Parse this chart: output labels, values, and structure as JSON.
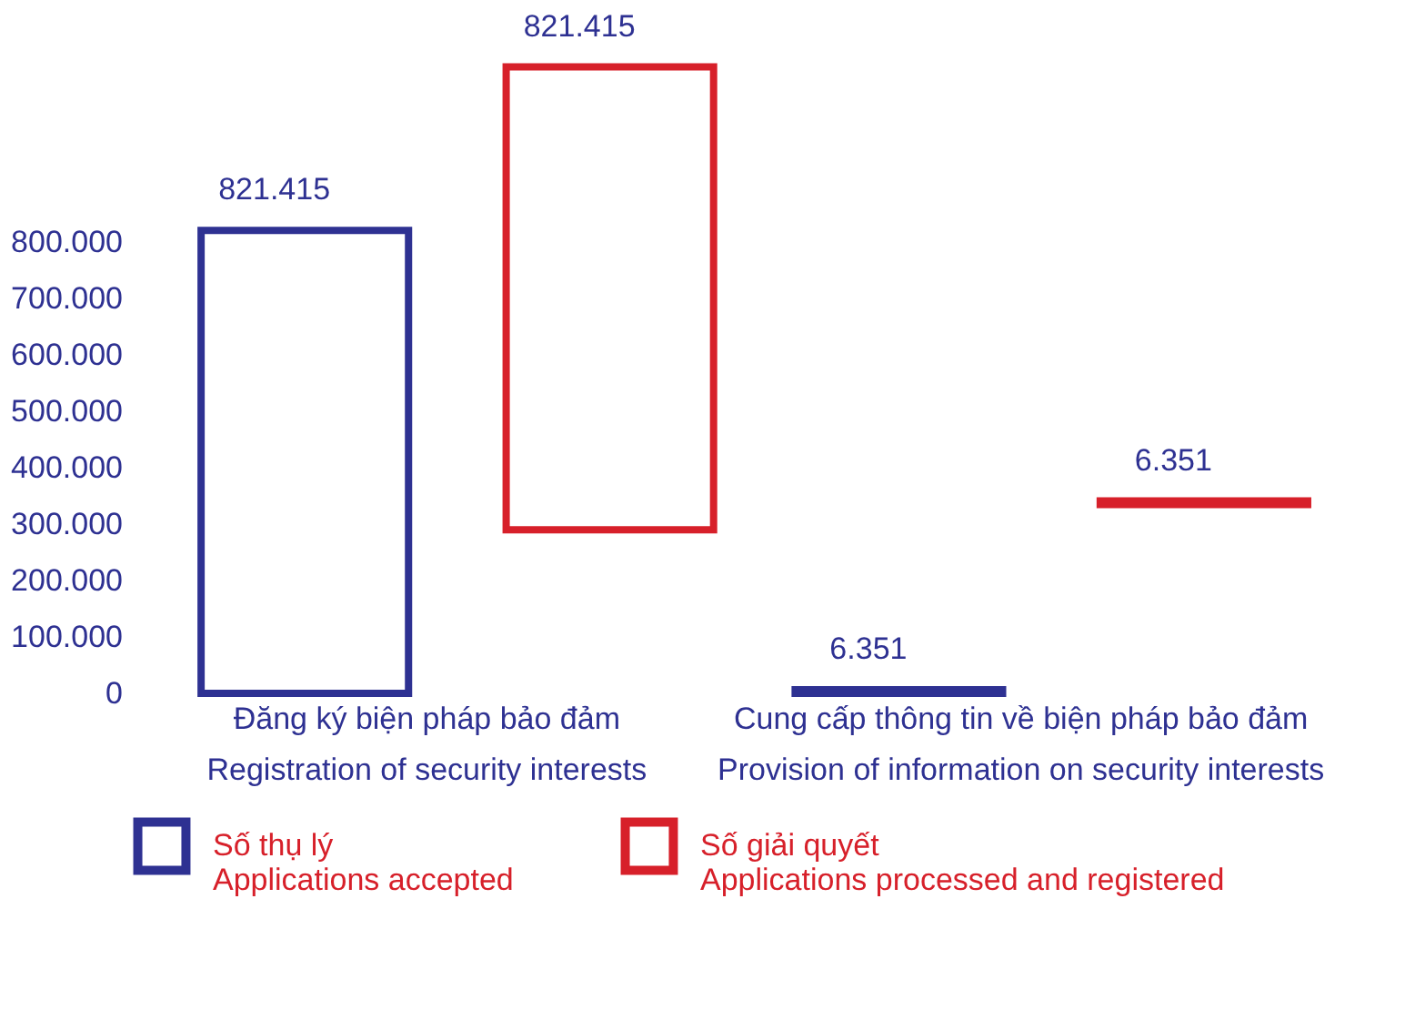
{
  "chart_data": {
    "type": "bar",
    "categories": [
      "Đăng ký biện pháp bảo đảm\nRegistration of security interests",
      "Cung cấp thông tin về biện pháp bảo đảm\nProvision of information on security interests"
    ],
    "series": [
      {
        "name": "Số thụ lý\nApplications accepted",
        "color": "#2e3192",
        "values": [
          821415,
          6351
        ],
        "value_labels": [
          "821.415",
          "6.351"
        ]
      },
      {
        "name": "Số giải quyết\nApplications processed and registered",
        "color": "#d7202a",
        "values": [
          821415,
          6351
        ],
        "value_labels": [
          "821.415",
          "6.351"
        ],
        "base": [
          290000,
          335000
        ]
      }
    ],
    "ylim": [
      0,
      1130000
    ],
    "yticks": [
      {
        "value": 0,
        "label": "0"
      },
      {
        "value": 100000,
        "label": "100.000"
      },
      {
        "value": 200000,
        "label": "200.000"
      },
      {
        "value": 300000,
        "label": "300.000"
      },
      {
        "value": 400000,
        "label": "400.000"
      },
      {
        "value": 500000,
        "label": "500.000"
      },
      {
        "value": 600000,
        "label": "600.000"
      },
      {
        "value": 700000,
        "label": "700.000"
      },
      {
        "value": 800000,
        "label": "800.000"
      }
    ],
    "legend": "bottom",
    "grid": false
  }
}
